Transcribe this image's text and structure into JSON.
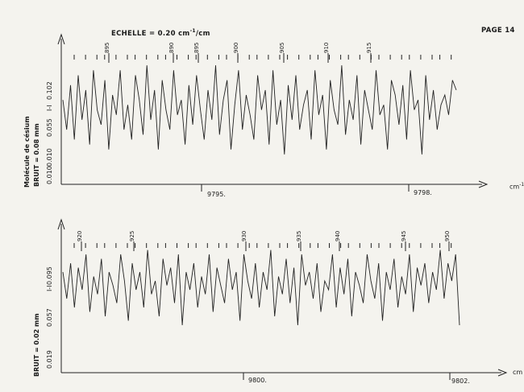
{
  "page": {
    "number": "PAGE 14",
    "scale": "ECHELLE = 0.20 cm",
    "scale_sup": "-1",
    "scale_tail": "/cm",
    "molecule": "Molécule de césium"
  },
  "panels": [
    {
      "noise": "BRUIT = 0.08 mm",
      "ylabels": [
        "I-I",
        "0.102",
        "0.055",
        "0.010",
        "0.010"
      ],
      "unit": "cm",
      "unit_sup": "-1",
      "ticks": [
        {
          "x_pos": "9795.",
          "label": "9795."
        },
        {
          "x_pos": "9798.",
          "label": "9798."
        }
      ],
      "line_numbers": [
        "895",
        "890",
        "895",
        "900",
        "905",
        "910",
        "915"
      ]
    },
    {
      "noise": "BRUIT = 0.02 mm",
      "ylabels": [
        "I-I",
        "0.095",
        "0.057",
        "0.019"
      ],
      "unit": "cm",
      "unit_sup": "",
      "ticks": [
        {
          "label": "9800."
        },
        {
          "label": "9802."
        }
      ],
      "line_numbers": [
        "920",
        "925",
        "930",
        "935",
        "940",
        "945",
        "950"
      ]
    }
  ],
  "chart_data": [
    {
      "type": "line",
      "title": "ECHELLE = 0.20 cm-1/cm",
      "xlabel": "cm-1",
      "ylabel": "I-I",
      "x_ticks": [
        "9795.",
        "9798."
      ],
      "y_ticks": [
        "0.102",
        "0.055",
        "0.010"
      ],
      "line_numbers": [
        "895",
        "890",
        "895",
        "900",
        "905",
        "910",
        "915"
      ],
      "series": [
        {
          "values": [
            0.6,
            0.3,
            0.75,
            0.2,
            0.85,
            0.4,
            0.7,
            0.15,
            0.9,
            0.5,
            0.35,
            0.8,
            0.1,
            0.65,
            0.45,
            0.9,
            0.3,
            0.55,
            0.2,
            0.85,
            0.6,
            0.25,
            0.95,
            0.4,
            0.7,
            0.1,
            0.8,
            0.5,
            0.3,
            0.9,
            0.45,
            0.6,
            0.15,
            0.75,
            0.35,
            0.85,
            0.5,
            0.2,
            0.7,
            0.4,
            0.95,
            0.25,
            0.6,
            0.8,
            0.1,
            0.55,
            0.9,
            0.3,
            0.65,
            0.45,
            0.2,
            0.85,
            0.5,
            0.7,
            0.15,
            0.9,
            0.35,
            0.6,
            0.05,
            0.75,
            0.4,
            0.85,
            0.3,
            0.55,
            0.7,
            0.2,
            0.9,
            0.45,
            0.65,
            0.1,
            0.8,
            0.5,
            0.35,
            0.95,
            0.25,
            0.6,
            0.4,
            0.85,
            0.15,
            0.7,
            0.5,
            0.3,
            0.9,
            0.45,
            0.55,
            0.1,
            0.8,
            0.65,
            0.35,
            0.75,
            0.2,
            0.9,
            0.5,
            0.6,
            0.05,
            0.85,
            0.4,
            0.7,
            0.3,
            0.55,
            0.65,
            0.45,
            0.8,
            0.7
          ]
        }
      ]
    },
    {
      "type": "line",
      "xlabel": "cm",
      "ylabel": "I-I",
      "x_ticks": [
        "9800.",
        "9802."
      ],
      "y_ticks": [
        "0.095",
        "0.057",
        "0.019"
      ],
      "line_numbers": [
        "920",
        "925",
        "930",
        "935",
        "940",
        "945",
        "950"
      ],
      "series": [
        {
          "values": [
            0.7,
            0.4,
            0.8,
            0.3,
            0.75,
            0.5,
            0.9,
            0.25,
            0.65,
            0.45,
            0.85,
            0.2,
            0.7,
            0.55,
            0.35,
            0.9,
            0.6,
            0.15,
            0.8,
            0.5,
            0.7,
            0.3,
            0.95,
            0.45,
            0.6,
            0.2,
            0.85,
            0.55,
            0.75,
            0.35,
            0.9,
            0.1,
            0.7,
            0.5,
            0.8,
            0.3,
            0.65,
            0.45,
            0.9,
            0.25,
            0.75,
            0.55,
            0.35,
            0.85,
            0.5,
            0.7,
            0.15,
            0.9,
            0.6,
            0.4,
            0.8,
            0.3,
            0.7,
            0.5,
            0.95,
            0.2,
            0.65,
            0.45,
            0.85,
            0.35,
            0.75,
            0.1,
            0.9,
            0.55,
            0.7,
            0.4,
            0.8,
            0.25,
            0.6,
            0.5,
            0.9,
            0.3,
            0.75,
            0.45,
            0.85,
            0.2,
            0.7,
            0.55,
            0.35,
            0.9,
            0.6,
            0.4,
            0.8,
            0.15,
            0.7,
            0.5,
            0.85,
            0.3,
            0.65,
            0.45,
            0.9,
            0.25,
            0.75,
            0.55,
            0.8,
            0.35,
            0.7,
            0.5,
            0.95,
            0.4,
            0.8,
            0.6,
            0.9,
            0.1
          ]
        }
      ]
    }
  ]
}
